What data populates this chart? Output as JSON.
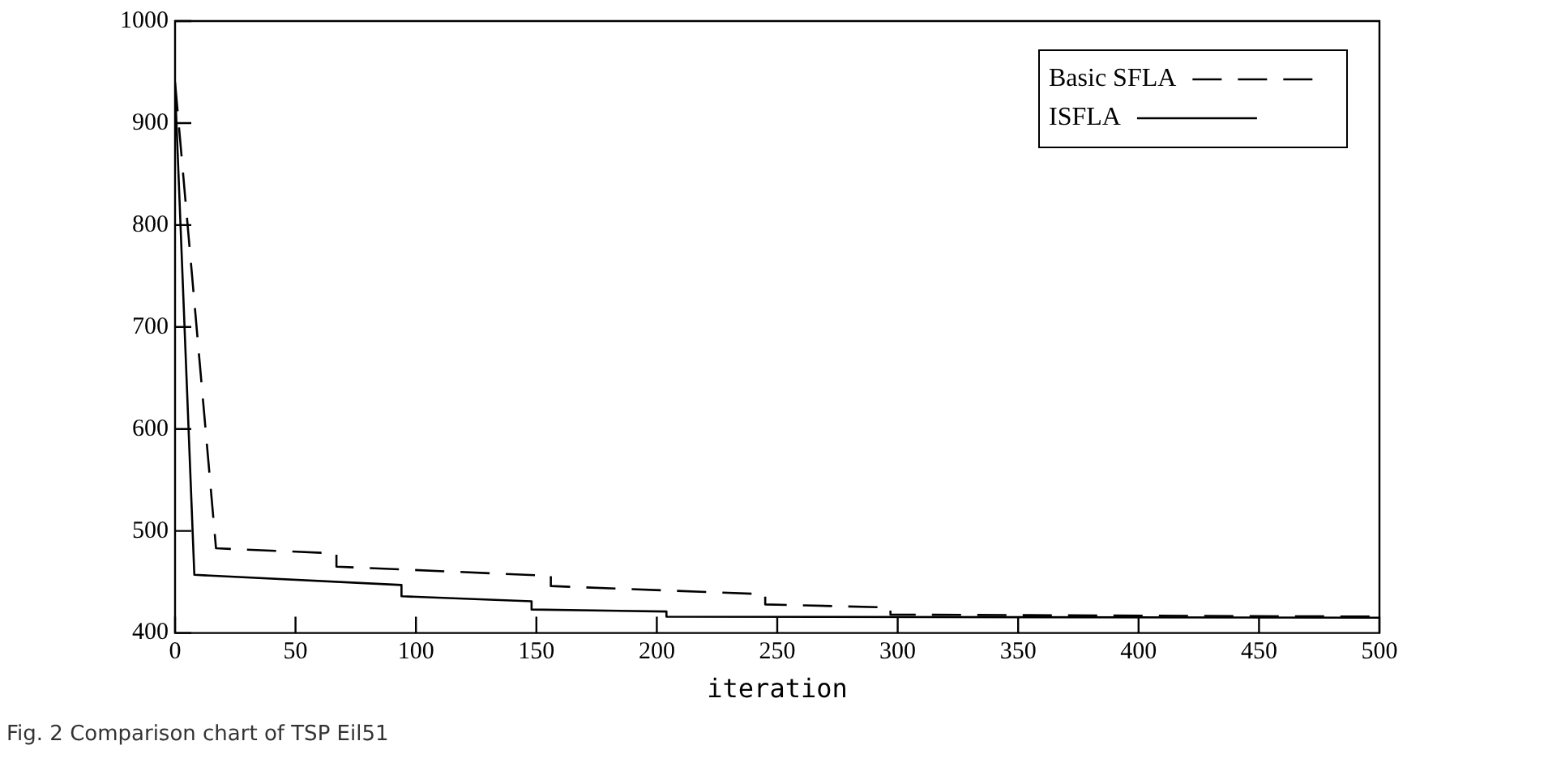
{
  "chart_data": {
    "type": "line",
    "xlabel": "iteration",
    "annotations": [
      "Fig. 2  Comparison chart of TSP Eil51"
    ],
    "xlim": [
      0,
      500
    ],
    "xticks": [
      0,
      50,
      100,
      150,
      200,
      250,
      300,
      350,
      400,
      450,
      500
    ],
    "ylim": [
      400,
      1000
    ],
    "yticks": [
      400,
      500,
      600,
      700,
      800,
      900,
      1000
    ],
    "grid": false,
    "legend": "top right",
    "marker": "none",
    "series": [
      {
        "name": "Basic SFLA",
        "color": "#000000",
        "line_style": "dashed",
        "x": [
          0,
          17,
          67,
          67,
          156,
          156,
          245,
          245,
          297,
          297,
          500
        ],
        "values": [
          940,
          483,
          478,
          465,
          456,
          446,
          438,
          428,
          425,
          418,
          416
        ]
      },
      {
        "name": "ISFLA",
        "color": "#000000",
        "line_style": "solid",
        "x": [
          0,
          8,
          94,
          94,
          148,
          148,
          204,
          204,
          500
        ],
        "values": [
          935,
          457,
          447,
          436,
          431,
          423,
          421,
          416,
          415
        ]
      }
    ]
  }
}
